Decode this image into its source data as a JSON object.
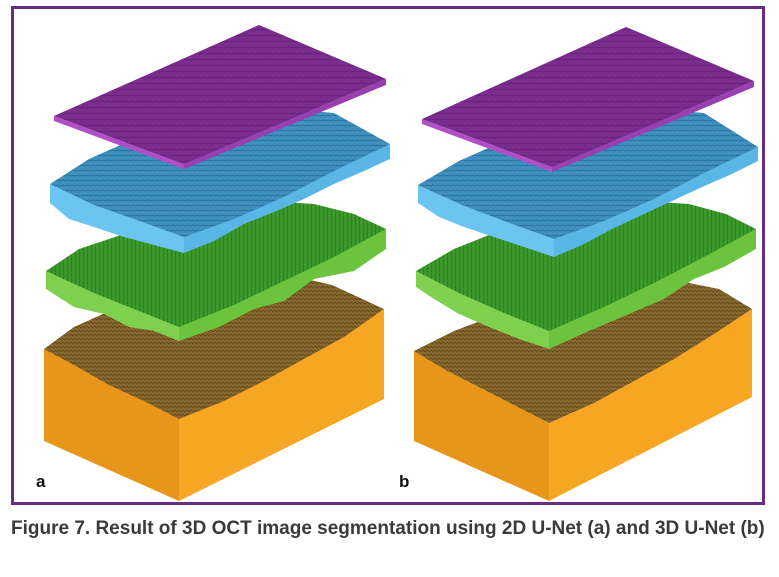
{
  "figure": {
    "panels": [
      {
        "label": "a",
        "method": "2D U-Net"
      },
      {
        "label": "b",
        "method": "3D U-Net"
      }
    ],
    "layer_colors": {
      "top_layer": "#7b2d8e",
      "second_layer": "#4aa8e0",
      "third_layer": "#5cbf3a",
      "bottom_surface": "#8a6a2e",
      "bottom_block": "#f6a623"
    },
    "frame_color": "#6a2d86"
  },
  "caption": {
    "text": "Figure 7. Result of 3D OCT image segmentation using 2D U-Net (a) and 3D U-Net (b)"
  }
}
